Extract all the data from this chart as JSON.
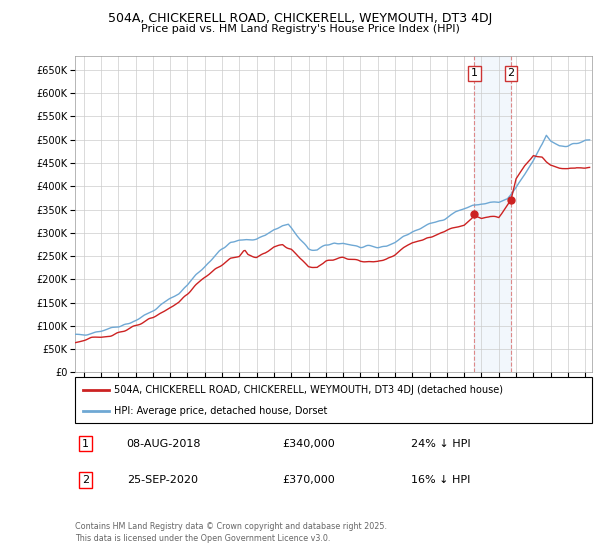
{
  "title": "504A, CHICKERELL ROAD, CHICKERELL, WEYMOUTH, DT3 4DJ",
  "subtitle": "Price paid vs. HM Land Registry's House Price Index (HPI)",
  "ylabel_values": [
    0,
    50000,
    100000,
    150000,
    200000,
    250000,
    300000,
    350000,
    400000,
    450000,
    500000,
    550000,
    600000,
    650000
  ],
  "ylim": [
    0,
    680000
  ],
  "hpi_color": "#6fa8d4",
  "price_color": "#cc2222",
  "vline_color": "#dd8888",
  "shade_color": "#ddeeff",
  "legend_label_red": "504A, CHICKERELL ROAD, CHICKERELL, WEYMOUTH, DT3 4DJ (detached house)",
  "legend_label_blue": "HPI: Average price, detached house, Dorset",
  "annotation1_num": "1",
  "annotation1_date": "08-AUG-2018",
  "annotation1_price": "£340,000",
  "annotation1_hpi": "24% ↓ HPI",
  "annotation2_num": "2",
  "annotation2_date": "25-SEP-2020",
  "annotation2_price": "£370,000",
  "annotation2_hpi": "16% ↓ HPI",
  "footer": "Contains HM Land Registry data © Crown copyright and database right 2025.\nThis data is licensed under the Open Government Licence v3.0.",
  "sale1_x": 2018.583,
  "sale1_y": 340000,
  "sale2_x": 2020.708,
  "sale2_y": 370000,
  "vline1_x": 2018.583,
  "vline2_x": 2020.708,
  "xlim": [
    1995.5,
    2025.4
  ],
  "ylim_max": 680000,
  "xticks": [
    1996,
    1997,
    1998,
    1999,
    2000,
    2001,
    2002,
    2003,
    2004,
    2005,
    2006,
    2007,
    2008,
    2009,
    2010,
    2011,
    2012,
    2013,
    2014,
    2015,
    2016,
    2017,
    2018,
    2019,
    2020,
    2021,
    2022,
    2023,
    2024,
    2025
  ],
  "background_color": "#ffffff",
  "plot_bg_color": "#ffffff",
  "grid_color": "#cccccc"
}
